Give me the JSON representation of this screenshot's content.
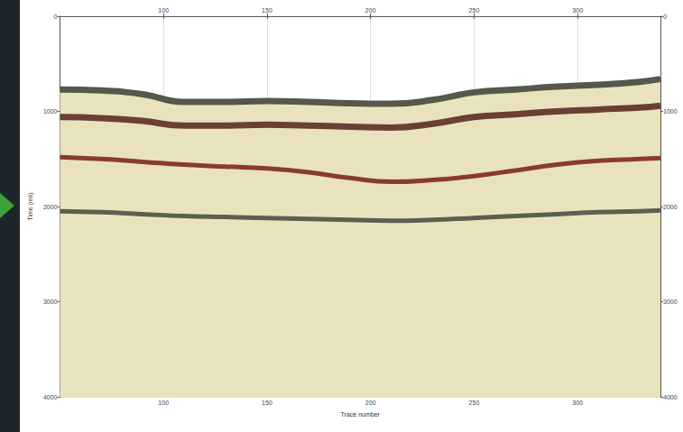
{
  "chart_data": {
    "type": "line",
    "xlabel": "Trace number",
    "ylabel": "Time (ms)",
    "x": [
      50,
      70,
      90,
      110,
      130,
      150,
      170,
      190,
      210,
      230,
      250,
      270,
      290,
      310,
      330,
      340
    ],
    "series": [
      {
        "color": "#55584a",
        "values": [
          770,
          780,
          820,
          900,
          900,
          890,
          900,
          915,
          920,
          880,
          800,
          770,
          740,
          720,
          690,
          660
        ]
      },
      {
        "color": "#6a3f35",
        "values": [
          1060,
          1070,
          1100,
          1150,
          1150,
          1140,
          1150,
          1160,
          1170,
          1130,
          1060,
          1030,
          1000,
          980,
          960,
          940
        ]
      },
      {
        "color": "#8b3a2e",
        "values": [
          1480,
          1500,
          1530,
          1560,
          1580,
          1600,
          1640,
          1700,
          1740,
          1720,
          1680,
          1620,
          1560,
          1520,
          1500,
          1490
        ]
      },
      {
        "color": "#5c5f50",
        "values": [
          2050,
          2060,
          2080,
          2100,
          2110,
          2120,
          2130,
          2140,
          2150,
          2140,
          2120,
          2100,
          2080,
          2060,
          2050,
          2040
        ]
      }
    ],
    "xlim": [
      50,
      340
    ],
    "xticks": [
      100,
      150,
      200,
      250,
      300
    ],
    "ylim": [
      0,
      4000
    ],
    "yticks": [
      0,
      1000,
      2000,
      3000,
      4000
    ],
    "grid": true
  }
}
